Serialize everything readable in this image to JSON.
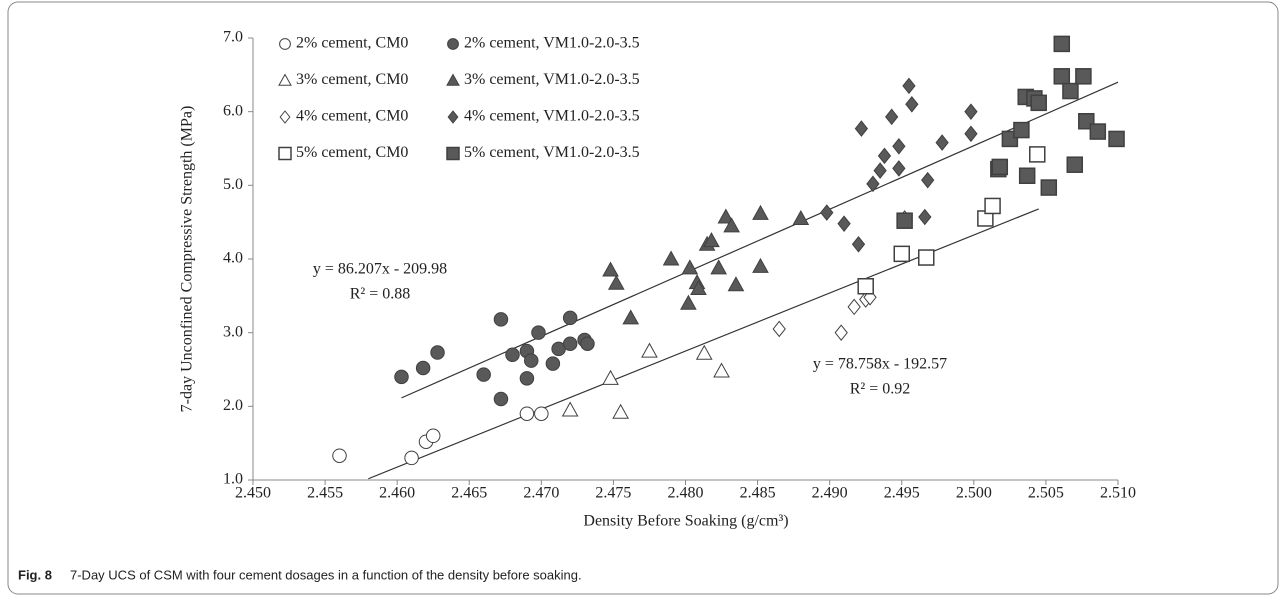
{
  "chart_data": {
    "type": "scatter",
    "xlabel": "Density Before Soaking (g/cm³)",
    "ylabel": "7-day Unconfined Compressive Strength (MPa)",
    "caption_label": "Fig. 8",
    "caption": "7-Day UCS of CSM with four cement dosages in a function of the density before soaking.",
    "xlim": [
      2.45,
      2.51
    ],
    "ylim": [
      1,
      7
    ],
    "xticks": [
      {
        "value": 2.45,
        "label": "2.450"
      },
      {
        "value": 2.455,
        "label": "2.455"
      },
      {
        "value": 2.46,
        "label": "2.460"
      },
      {
        "value": 2.465,
        "label": "2.465"
      },
      {
        "value": 2.47,
        "label": "2.470"
      },
      {
        "value": 2.475,
        "label": "2.475"
      },
      {
        "value": 2.48,
        "label": "2.480"
      },
      {
        "value": 2.485,
        "label": "2.485"
      },
      {
        "value": 2.49,
        "label": "2.490"
      },
      {
        "value": 2.495,
        "label": "2.495"
      },
      {
        "value": 2.5,
        "label": "2.500"
      },
      {
        "value": 2.505,
        "label": "2.505"
      },
      {
        "value": 2.51,
        "label": "2.510"
      }
    ],
    "yticks": [
      {
        "value": 1,
        "label": "1.0"
      },
      {
        "value": 2,
        "label": "2.0"
      },
      {
        "value": 3,
        "label": "3.0"
      },
      {
        "value": 4,
        "label": "4.0"
      },
      {
        "value": 5,
        "label": "5.0"
      },
      {
        "value": 6,
        "label": "6.0"
      },
      {
        "value": 7,
        "label": "7.0"
      }
    ],
    "grid": false,
    "legend": "top-left",
    "series": [
      {
        "name": "2% cement, CM0",
        "marker": "circle",
        "color": "#ffffff",
        "x": [
          2.456,
          2.461,
          2.462,
          2.4625,
          2.469,
          2.47
        ],
        "values": [
          1.33,
          1.3,
          1.52,
          1.6,
          1.9,
          1.9
        ]
      },
      {
        "name": "2% cement, VM1.0-2.0-3.5",
        "marker": "circle",
        "color": "#595959",
        "x": [
          2.4603,
          2.4618,
          2.4628,
          2.466,
          2.4672,
          2.4672,
          2.468,
          2.469,
          2.469,
          2.4693,
          2.4698,
          2.4708,
          2.4712,
          2.472,
          2.472,
          2.473,
          2.4732
        ],
        "values": [
          2.4,
          2.52,
          2.73,
          2.43,
          3.18,
          2.1,
          2.7,
          2.75,
          2.38,
          2.62,
          3.0,
          2.58,
          2.78,
          3.2,
          2.85,
          2.9,
          2.85
        ]
      },
      {
        "name": "3% cement, CM0",
        "marker": "triangle",
        "color": "#ffffff",
        "x": [
          2.472,
          2.4748,
          2.4755,
          2.4775,
          2.4813,
          2.4825
        ],
        "values": [
          1.95,
          2.38,
          1.92,
          2.75,
          2.72,
          2.48
        ]
      },
      {
        "name": "3% cement, VM1.0-2.0-3.5",
        "marker": "triangle",
        "color": "#595959",
        "x": [
          2.4748,
          2.4752,
          2.4762,
          2.479,
          2.4802,
          2.4803,
          2.4808,
          2.4809,
          2.4815,
          2.4818,
          2.4823,
          2.4828,
          2.4832,
          2.4835,
          2.4852,
          2.4852,
          2.488
        ],
        "values": [
          3.85,
          3.67,
          3.2,
          4.0,
          3.4,
          3.88,
          3.68,
          3.6,
          4.2,
          4.25,
          3.88,
          4.57,
          4.45,
          3.65,
          4.62,
          3.9,
          4.55
        ]
      },
      {
        "name": "4% cement, CM0",
        "marker": "diamond",
        "color": "#ffffff",
        "x": [
          2.4865,
          2.4908,
          2.4917,
          2.4925,
          2.4928,
          2.4952
        ],
        "values": [
          3.05,
          3.0,
          3.35,
          3.45,
          3.48,
          4.55
        ]
      },
      {
        "name": "4% cement, VM1.0-2.0-3.5",
        "marker": "diamond",
        "color": "#595959",
        "x": [
          2.4898,
          2.491,
          2.492,
          2.4922,
          2.493,
          2.4935,
          2.4938,
          2.4943,
          2.4948,
          2.4948,
          2.4955,
          2.4957,
          2.4966,
          2.4968,
          2.4978,
          2.4998,
          2.4998
        ],
        "values": [
          4.63,
          4.48,
          4.2,
          5.77,
          5.02,
          5.2,
          5.4,
          5.93,
          5.23,
          5.53,
          6.35,
          6.1,
          4.57,
          5.07,
          5.58,
          5.7,
          6.0
        ]
      },
      {
        "name": "5% cement, CM0",
        "marker": "square",
        "color": "#ffffff",
        "x": [
          2.4925,
          2.495,
          2.4967,
          2.5008,
          2.5013,
          2.5044
        ],
        "values": [
          3.63,
          4.07,
          4.02,
          4.55,
          4.72,
          5.42
        ]
      },
      {
        "name": "5% cement, VM1.0-2.0-3.5",
        "marker": "square",
        "color": "#595959",
        "x": [
          2.4952,
          2.5017,
          2.5018,
          2.5025,
          2.5033,
          2.5036,
          2.5037,
          2.5042,
          2.5045,
          2.5052,
          2.5061,
          2.5061,
          2.5067,
          2.507,
          2.5076,
          2.5078,
          2.5086,
          2.5099
        ],
        "values": [
          4.52,
          5.22,
          5.25,
          5.63,
          5.75,
          6.2,
          5.13,
          6.18,
          6.12,
          4.97,
          6.92,
          6.48,
          6.28,
          5.28,
          6.48,
          5.87,
          5.73,
          5.63
        ]
      }
    ],
    "trend_lines": [
      {
        "x": [
          2.4603,
          2.51
        ],
        "values": [
          2.115,
          6.4
        ],
        "equation": "y = 86.207x - 209.98",
        "r2": "R² = 0.88"
      },
      {
        "x": [
          2.458,
          2.5045
        ],
        "values": [
          1.017,
          4.68
        ],
        "equation": "y = 78.758x - 192.57",
        "r2": "R² = 0.92"
      }
    ]
  }
}
